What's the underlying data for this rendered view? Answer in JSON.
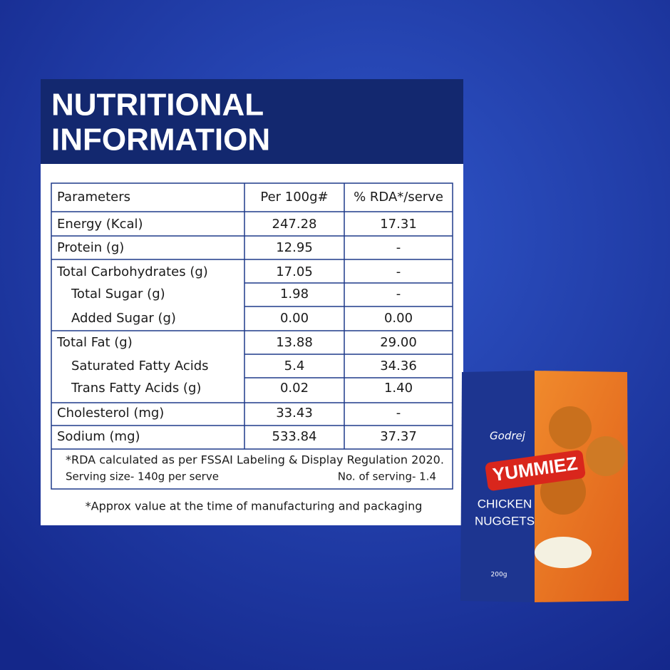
{
  "title": [
    "NUTRITIONAL",
    "INFORMATION"
  ],
  "table": {
    "header": [
      "Parameters",
      "Per 100g#",
      "% RDA*/serve"
    ],
    "rows": [
      [
        "Energy (Kcal)",
        "247.28",
        "17.31"
      ],
      [
        "Protein (g)",
        "12.95",
        "-"
      ],
      [
        "Total Carbohydrates (g)",
        "17.05",
        "-"
      ],
      [
        "Total Sugar (g)",
        "1.98",
        "-"
      ],
      [
        "Added Sugar (g)",
        "0.00",
        "0.00"
      ],
      [
        "Total Fat (g)",
        "13.88",
        "29.00"
      ],
      [
        "Saturated Fatty Acids",
        "5.4",
        "34.36"
      ],
      [
        "Trans Fatty Acids (g)",
        "0.02",
        "1.40"
      ],
      [
        "Cholesterol (mg)",
        "33.43",
        "-"
      ],
      [
        "Sodium (mg)",
        "533.84",
        "37.37"
      ]
    ],
    "footnote": {
      "rda": "*RDA calculated as per FSSAI Labeling & Display Regulation 2020.",
      "serving_size": "Serving size- 140g per serve",
      "servings": "No. of serving- 1.4"
    }
  },
  "note": "*Approx value at the time of manufacturing and packaging",
  "package": {
    "brand": "Godrej",
    "name": "YUMMIEZ",
    "product": [
      "CHICKEN",
      "NUGGETS"
    ],
    "weight": "200g"
  }
}
